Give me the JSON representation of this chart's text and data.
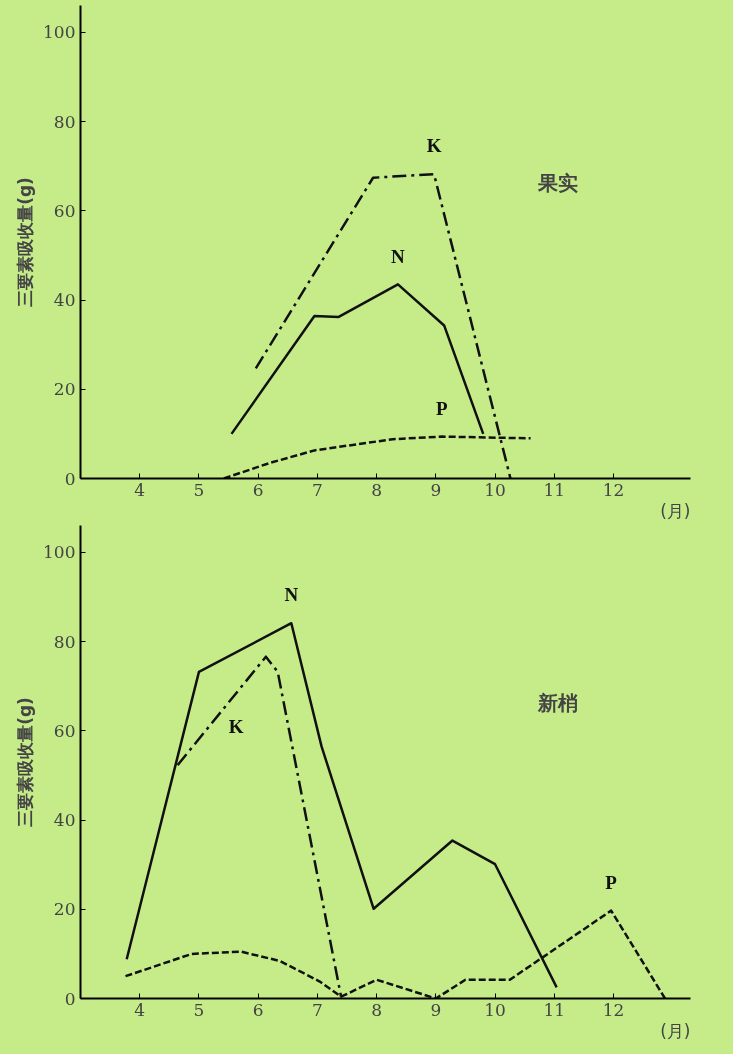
{
  "chart_data": [
    {
      "type": "line",
      "annotations": [
        "果实"
      ],
      "ylabel": "三要素吸收量(g)",
      "xlabel": "(月)",
      "xlim": [
        3,
        13.3
      ],
      "ylim": [
        0,
        106
      ],
      "xticks": [
        4,
        5,
        6,
        7,
        8,
        9,
        10,
        11,
        12
      ],
      "yticks": [
        0,
        20,
        40,
        60,
        80,
        100
      ],
      "series": [
        {
          "name": "K",
          "color": "#111111",
          "line_style": "dashdot",
          "x": [
            5.96,
            7.94,
            8.97,
            10.26
          ],
          "values": [
            24.7,
            67.4,
            68.2,
            0
          ]
        },
        {
          "name": "N",
          "color": "#111111",
          "line_style": "solid",
          "x": [
            5.55,
            6.95,
            7.36,
            8.36,
            9.14,
            9.8
          ],
          "values": [
            10,
            36.4,
            36.2,
            43.5,
            34.3,
            10
          ]
        },
        {
          "name": "P",
          "color": "#111111",
          "line_style": "dashed",
          "x": [
            5.42,
            6.2,
            6.95,
            8.27,
            9.1,
            10.6
          ],
          "values": [
            0,
            3.5,
            6.3,
            8.8,
            9.4,
            9
          ]
        }
      ]
    },
    {
      "type": "line",
      "annotations": [
        "新梢"
      ],
      "ylabel": "三要素吸收量(g)",
      "xlabel": "(月)",
      "xlim": [
        3,
        13.3
      ],
      "ylim": [
        0,
        106
      ],
      "xticks": [
        4,
        5,
        6,
        7,
        8,
        9,
        10,
        11,
        12
      ],
      "yticks": [
        0,
        20,
        40,
        60,
        80,
        100
      ],
      "series": [
        {
          "name": "N",
          "color": "#111111",
          "line_style": "solid",
          "x": [
            3.78,
            5,
            6.56,
            7.07,
            7.95,
            9.28,
            10,
            11.04
          ],
          "values": [
            8.8,
            73.2,
            84.1,
            56.5,
            20.1,
            35.4,
            30.1,
            2.5
          ]
        },
        {
          "name": "K",
          "color": "#111111",
          "line_style": "dashdot",
          "x": [
            4.64,
            6.13,
            6.33,
            7.4
          ],
          "values": [
            52.3,
            76.6,
            73.2,
            0.4
          ]
        },
        {
          "name": "P",
          "color": "#111111",
          "line_style": "dashed",
          "x": [
            3.76,
            4.88,
            5.71,
            6.37,
            7.04,
            7.4,
            8.0,
            9.0,
            9.5,
            10.25,
            11.96,
            12.87
          ],
          "values": [
            5,
            10,
            10.5,
            8.4,
            3.8,
            0.4,
            4.2,
            0,
            4.2,
            4.2,
            19.7,
            0
          ]
        }
      ]
    }
  ]
}
